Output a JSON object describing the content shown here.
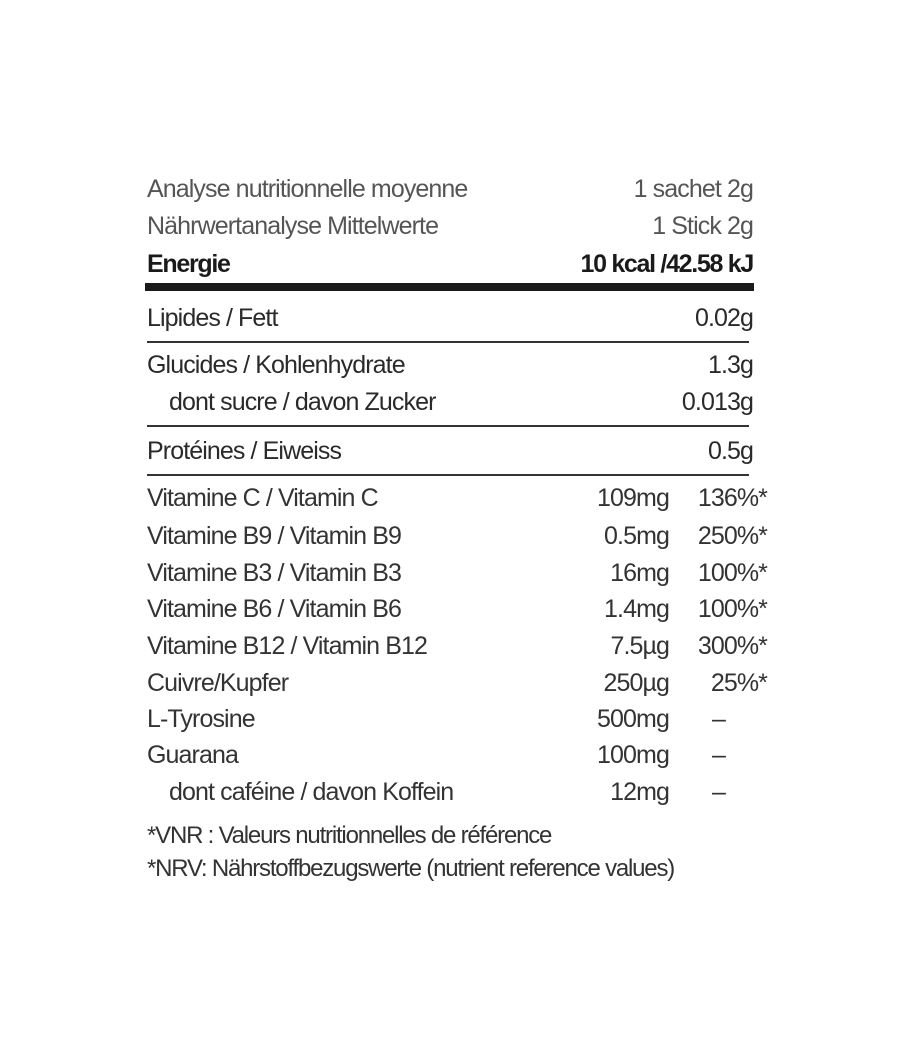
{
  "header": [
    {
      "label": "Analyse nutritionnelle moyenne",
      "value": "1 sachet 2g"
    },
    {
      "label": "Nährwertanalyse Mittelwerte",
      "value": "1 Stick 2g"
    }
  ],
  "energy": {
    "label": "Energie",
    "value": "10 kcal /42.58 kJ"
  },
  "macros": [
    {
      "label": "Lipides / Fett",
      "value": "0.02g"
    },
    {
      "label": "Glucides / Kohlenhydrate",
      "value": "1.3g"
    },
    {
      "label": "dont sucre / davon Zucker",
      "value": "0.013g"
    },
    {
      "label": "Protéines / Eiweiss",
      "value": "0.5g"
    }
  ],
  "micros": [
    {
      "label": "Vitamine C / Vitamin C",
      "amount": "109mg",
      "nrv": "136%*"
    },
    {
      "label": "Vitamine B9 / Vitamin B9",
      "amount": "0.5mg",
      "nrv": "250%*"
    },
    {
      "label": "Vitamine B3 / Vitamin B3",
      "amount": "16mg",
      "nrv": "100%*"
    },
    {
      "label": "Vitamine B6 / Vitamin B6",
      "amount": "1.4mg",
      "nrv": "100%*"
    },
    {
      "label": "Vitamine B12 / Vitamin B12",
      "amount": "7.5µg",
      "nrv": "300%*"
    },
    {
      "label": "Cuivre/Kupfer",
      "amount": "250µg",
      "nrv": "25%*"
    },
    {
      "label": "L-Tyrosine",
      "amount": "500mg",
      "nrv": "–"
    },
    {
      "label": "Guarana",
      "amount": "100mg",
      "nrv": "–"
    },
    {
      "label": "dont caféine / davon Koffein",
      "amount": "12mg",
      "nrv": "–"
    }
  ],
  "footnotes": [
    "*VNR : Valeurs nutritionnelles de référence",
    "*NRV: Nährstoffbezugswerte (nutrient reference values)"
  ]
}
